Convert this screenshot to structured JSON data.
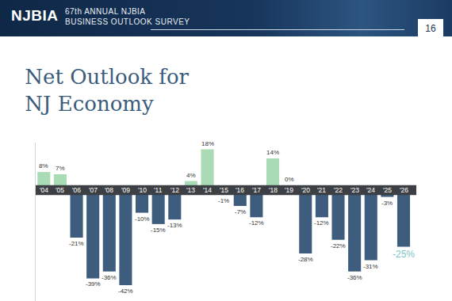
{
  "header": {
    "logo": "NJBIA",
    "line1": "67th ANNUAL NJBIA",
    "line2": "BUSINESS OUTLOOK SURVEY",
    "page": "16"
  },
  "chart_data": {
    "type": "bar",
    "title": "Net Outlook for\nNJ Economy",
    "categories": [
      "'04",
      "'05",
      "'06",
      "'07",
      "'08",
      "'09",
      "'10",
      "'11",
      "'12",
      "'13",
      "'14",
      "'15",
      "'16",
      "'17",
      "'18",
      "'19",
      "'20",
      "'21",
      "'22",
      "'23",
      "'24",
      "'25",
      "'26"
    ],
    "values": [
      8,
      7,
      -21,
      -39,
      -36,
      -42,
      -10,
      -15,
      -13,
      4,
      18,
      -1,
      -7,
      -12,
      14,
      0,
      -28,
      -12,
      -22,
      -36,
      -31,
      -3,
      -25
    ],
    "value_labels": [
      "8%",
      "7%",
      "-21%",
      "-39%",
      "-36%",
      "-42%",
      "-10%",
      "-15%",
      "-13%",
      "4%",
      "18%",
      "-1%",
      "-7%",
      "-12%",
      "14%",
      "0%",
      "-28%",
      "-12%",
      "-22%",
      "-36%",
      "-31%",
      "-3%",
      "-25%"
    ],
    "colors": [
      "#a9dcb5",
      "#a9dcb5",
      "#3e5c7e",
      "#3e5c7e",
      "#3e5c7e",
      "#3e5c7e",
      "#3e5c7e",
      "#3e5c7e",
      "#3e5c7e",
      "#a9dcb5",
      "#a9dcb5",
      "#3e5c7e",
      "#3e5c7e",
      "#3e5c7e",
      "#a9dcb5",
      "#a9dcb5",
      "#3e5c7e",
      "#3e5c7e",
      "#3e5c7e",
      "#3e5c7e",
      "#3e5c7e",
      "#3e5c7e",
      "#3e5c7e"
    ],
    "ylim": [
      -49,
      21
    ],
    "yticks": [],
    "grid": false,
    "data_labels": true,
    "tick_labels": "x"
  }
}
